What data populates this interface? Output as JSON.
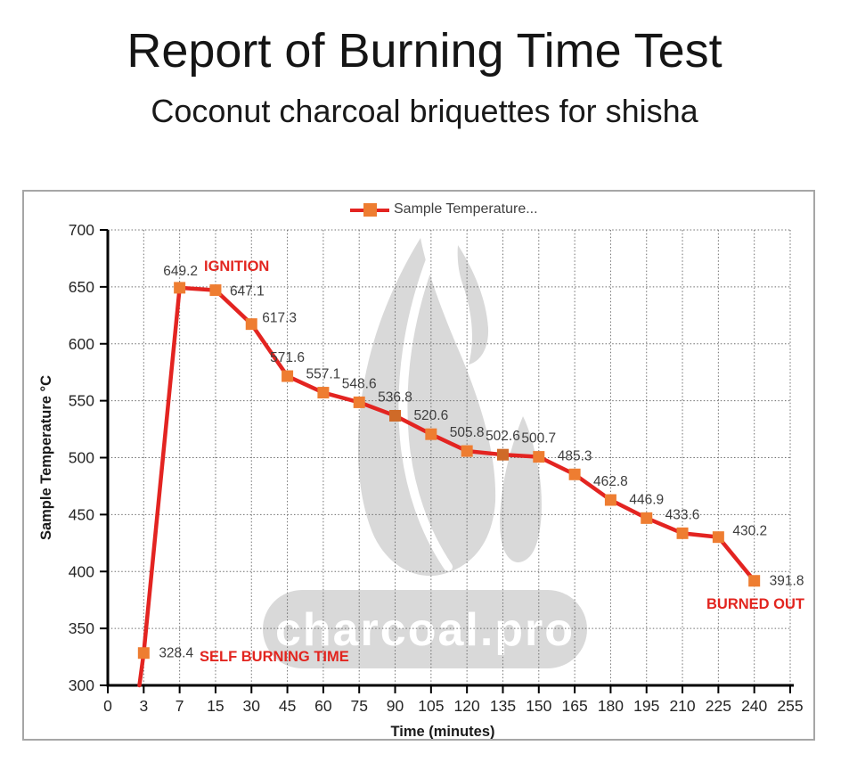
{
  "page": {
    "title": "Report of Burning Time Test",
    "subtitle": "Coconut charcoal briquettes for shisha"
  },
  "chart_data": {
    "type": "line",
    "title": "",
    "xlabel": "Time (minutes)",
    "ylabel": "Sample Temperature °C",
    "ylim": [
      300,
      700
    ],
    "yticks": [
      300,
      350,
      400,
      450,
      500,
      550,
      600,
      650,
      700
    ],
    "grid": true,
    "legend_position": "top-center",
    "categories": [
      0,
      3,
      7,
      15,
      30,
      45,
      60,
      75,
      90,
      105,
      120,
      135,
      150,
      165,
      180,
      195,
      210,
      225,
      240,
      255
    ],
    "series": [
      {
        "name": "Sample Temperature...",
        "line_color": "#e32421",
        "marker": "square",
        "marker_color": "#ee7d31",
        "x": [
          3,
          7,
          15,
          30,
          45,
          60,
          75,
          90,
          105,
          120,
          135,
          150,
          165,
          180,
          195,
          210,
          225,
          240
        ],
        "values": [
          328.4,
          649.2,
          647.1,
          617.3,
          571.6,
          557.1,
          548.6,
          536.8,
          520.6,
          505.8,
          502.6,
          500.7,
          485.3,
          462.8,
          446.9,
          433.6,
          430.2,
          391.8
        ]
      }
    ],
    "annotations": [
      {
        "id": "ignition",
        "text": "IGNITION",
        "color": "#e2251f"
      },
      {
        "id": "self-burning-time",
        "text": "SELF BURNING TIME",
        "color": "#e2251f"
      },
      {
        "id": "burned-out",
        "text": "BURNED OUT",
        "color": "#e2251f"
      }
    ],
    "watermark": {
      "text": "charcoal.pro",
      "color": "#d9d9d9"
    }
  }
}
